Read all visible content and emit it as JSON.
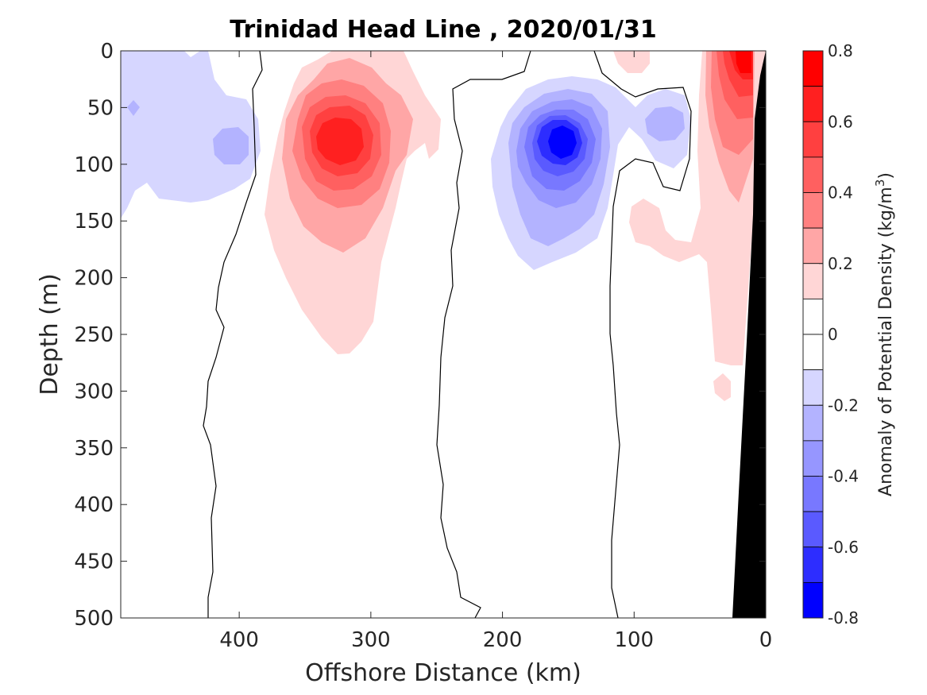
{
  "chart_data": {
    "type": "heatmap",
    "title": "Trinidad Head Line , 2020/01/31",
    "xlabel": "Offshore Distance (km)",
    "ylabel": "Depth (m)",
    "xlim": [
      490,
      0
    ],
    "ylim": [
      0,
      500
    ],
    "x_ticks": [
      400,
      300,
      200,
      100,
      0
    ],
    "x_tick_labels": [
      "400",
      "300",
      "200",
      "100",
      "0"
    ],
    "y_ticks": [
      0,
      50,
      100,
      150,
      200,
      250,
      300,
      350,
      400,
      450,
      500
    ],
    "y_tick_labels": [
      "0",
      "50",
      "100",
      "150",
      "200",
      "250",
      "300",
      "350",
      "400",
      "450",
      "500"
    ],
    "colorbar": {
      "label_prefix": "Anomaly of Potential Density (kg/m",
      "label_exp": "3",
      "label_suffix": ")",
      "range": [
        -0.8,
        0.8
      ],
      "ticks": [
        0.8,
        0.6,
        0.4,
        0.2,
        0,
        -0.2,
        -0.4,
        -0.6,
        -0.8
      ],
      "tick_labels": [
        "0.8",
        "0.6",
        "0.4",
        "0.2",
        "0",
        "-0.2",
        "-0.4",
        "-0.6",
        "-0.8"
      ],
      "levels": [
        {
          "lo": 0.7,
          "hi": 0.8,
          "color": "#ff0000"
        },
        {
          "lo": 0.6,
          "hi": 0.7,
          "color": "#ff2020"
        },
        {
          "lo": 0.5,
          "hi": 0.6,
          "color": "#ff4040"
        },
        {
          "lo": 0.4,
          "hi": 0.5,
          "color": "#ff6060"
        },
        {
          "lo": 0.3,
          "hi": 0.4,
          "color": "#ff8080"
        },
        {
          "lo": 0.2,
          "hi": 0.3,
          "color": "#ffa6a6"
        },
        {
          "lo": 0.1,
          "hi": 0.2,
          "color": "#ffd6d6"
        },
        {
          "lo": 0.0,
          "hi": 0.1,
          "color": "#ffffff"
        },
        {
          "lo": -0.1,
          "hi": 0.0,
          "color": "#ffffff"
        },
        {
          "lo": -0.2,
          "hi": -0.1,
          "color": "#d6d6ff"
        },
        {
          "lo": -0.3,
          "hi": -0.2,
          "color": "#b3b3ff"
        },
        {
          "lo": -0.4,
          "hi": -0.3,
          "color": "#9696ff"
        },
        {
          "lo": -0.5,
          "hi": -0.4,
          "color": "#7878ff"
        },
        {
          "lo": -0.6,
          "hi": -0.5,
          "color": "#5a5aff"
        },
        {
          "lo": -0.7,
          "hi": -0.6,
          "color": "#2d2dff"
        },
        {
          "lo": -0.8,
          "hi": -0.7,
          "color": "#0000ff"
        }
      ]
    },
    "features": [
      {
        "name": "positive-anomaly-core",
        "x_km": 320,
        "depth_m": 75,
        "value": 0.7
      },
      {
        "name": "negative-anomaly-core",
        "x_km": 150,
        "depth_m": 80,
        "value": -0.8
      },
      {
        "name": "nearshore-positive-anomaly",
        "x_km": 15,
        "depth_m": 20,
        "value": 0.8
      },
      {
        "name": "offshore-negative-anomaly",
        "x_km": 415,
        "depth_m": 80,
        "value": -0.3
      },
      {
        "name": "shelf-negative-patch",
        "x_km": 70,
        "depth_m": 60,
        "value": -0.3
      }
    ],
    "colors": {
      "seafloor": "#000000",
      "zero_contour": "#000000"
    }
  }
}
